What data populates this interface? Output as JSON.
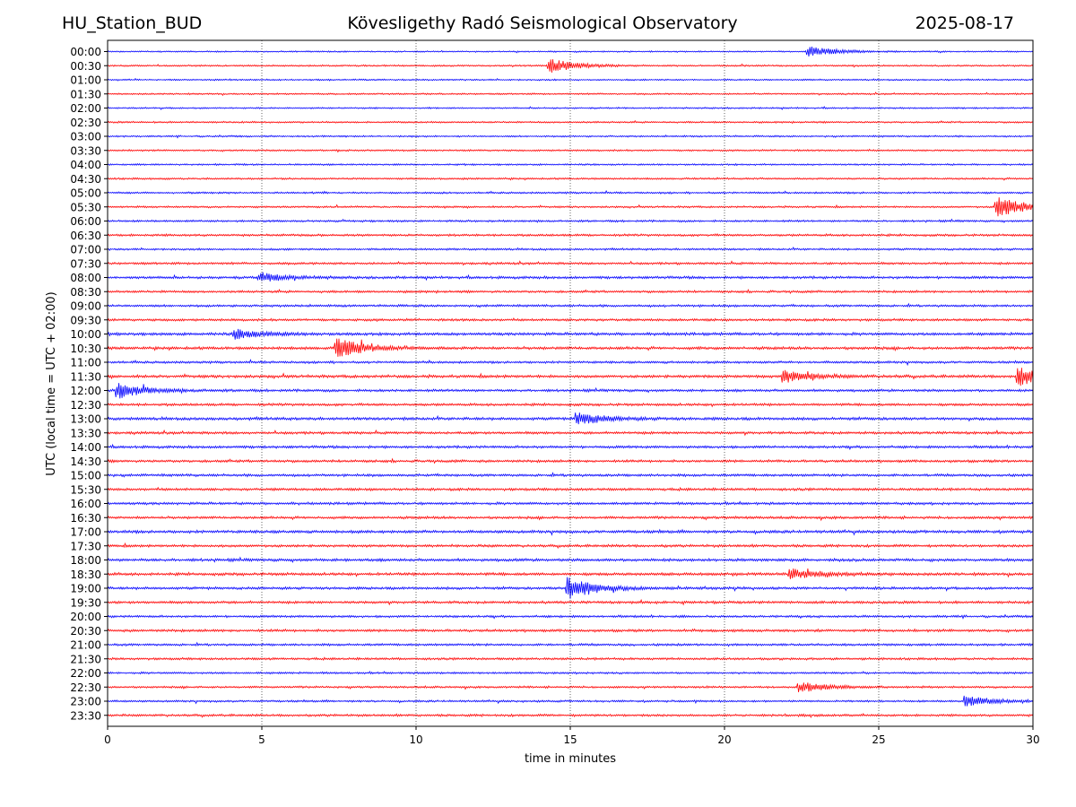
{
  "header": {
    "station": "HU_Station_BUD",
    "observatory": "Kövesligethy Radó Seismological Observatory",
    "date": "2025-08-17"
  },
  "colors": {
    "even_rows": "#0000ff",
    "odd_rows": "#ff0000",
    "grid": "#000000"
  },
  "chart_data": {
    "type": "line",
    "title": "Kövesligethy Radó Seismological Observatory",
    "xlabel": "time in minutes",
    "ylabel": "UTC (local time = UTC + 02:00)",
    "xlim": [
      0,
      30
    ],
    "xticks": [
      0,
      5,
      10,
      15,
      20,
      25,
      30
    ],
    "grid": "vertical dotted at each x tick",
    "rows": [
      "00:00",
      "00:30",
      "01:00",
      "01:30",
      "02:00",
      "02:30",
      "03:00",
      "03:30",
      "04:00",
      "04:30",
      "05:00",
      "05:30",
      "06:00",
      "06:30",
      "07:00",
      "07:30",
      "08:00",
      "08:30",
      "09:00",
      "09:30",
      "10:00",
      "10:30",
      "11:00",
      "11:30",
      "12:00",
      "12:30",
      "13:00",
      "13:30",
      "14:00",
      "14:30",
      "15:00",
      "15:30",
      "16:00",
      "16:30",
      "17:00",
      "17:30",
      "18:00",
      "18:30",
      "19:00",
      "19:30",
      "20:00",
      "20:30",
      "21:00",
      "21:30",
      "22:00",
      "22:30",
      "23:00",
      "23:30"
    ],
    "row_noise_level": [
      0.5,
      0.55,
      0.55,
      0.55,
      0.55,
      0.6,
      0.6,
      0.6,
      0.6,
      0.65,
      0.65,
      0.65,
      0.7,
      0.8,
      0.7,
      0.8,
      0.9,
      0.8,
      0.8,
      0.85,
      1.0,
      1.0,
      0.8,
      1.0,
      0.9,
      0.9,
      1.0,
      0.9,
      0.9,
      0.9,
      0.9,
      0.9,
      0.9,
      0.9,
      1.0,
      0.9,
      1.0,
      1.0,
      0.9,
      0.9,
      0.8,
      0.9,
      0.8,
      0.8,
      0.7,
      0.7,
      0.7,
      0.8
    ],
    "events": [
      {
        "row": "00:00",
        "minute": 22.8,
        "amplitude": 1.8
      },
      {
        "row": "00:30",
        "minute": 14.4,
        "amplitude": 2.4
      },
      {
        "row": "05:30",
        "minute": 28.9,
        "amplitude": 4.0
      },
      {
        "row": "08:00",
        "minute": 5.0,
        "amplitude": 1.6
      },
      {
        "row": "10:00",
        "minute": 4.2,
        "amplitude": 1.6
      },
      {
        "row": "10:30",
        "minute": 7.5,
        "amplitude": 3.5
      },
      {
        "row": "11:30",
        "minute": 22.0,
        "amplitude": 2.0
      },
      {
        "row": "11:30",
        "minute": 29.6,
        "amplitude": 3.0
      },
      {
        "row": "12:00",
        "minute": 0.4,
        "amplitude": 2.6
      },
      {
        "row": "13:00",
        "minute": 15.3,
        "amplitude": 2.0
      },
      {
        "row": "18:30",
        "minute": 22.2,
        "amplitude": 1.8
      },
      {
        "row": "19:00",
        "minute": 15.0,
        "amplitude": 4.2
      },
      {
        "row": "22:30",
        "minute": 22.5,
        "amplitude": 1.8
      },
      {
        "row": "23:00",
        "minute": 27.9,
        "amplitude": 1.8
      }
    ]
  }
}
